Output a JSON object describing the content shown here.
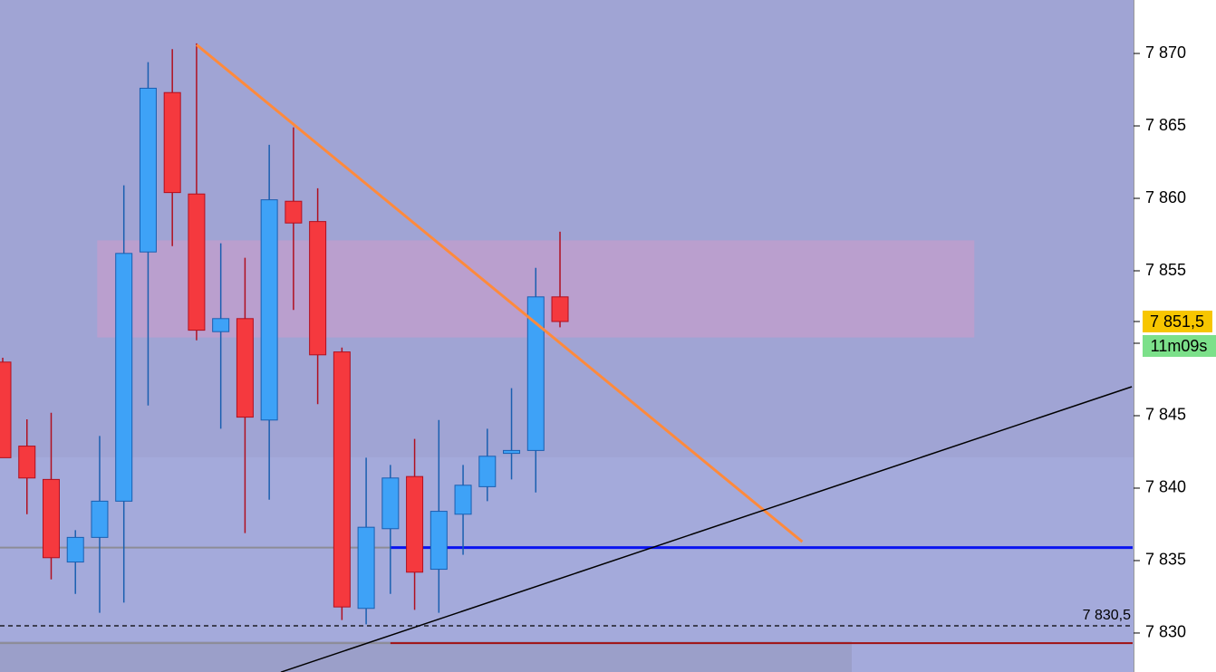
{
  "chart_data": {
    "type": "candlestick",
    "categories": [
      null,
      null,
      null,
      null,
      null,
      null,
      null,
      null,
      null,
      null,
      null,
      null,
      null,
      null,
      null,
      null,
      null,
      null,
      null,
      null,
      null,
      null,
      null,
      null
    ],
    "open": [
      7848.7,
      7842.9,
      7840.6,
      7834.9,
      7836.6,
      7839.1,
      7856.3,
      7867.3,
      7860.3,
      7850.8,
      7851.7,
      7844.7,
      7859.8,
      7858.4,
      7849.4,
      7831.7,
      7837.2,
      7840.8,
      7834.4,
      7838.2,
      7840.1,
      7842.4,
      7842.6,
      7853.2
    ],
    "high": [
      7849.0,
      7844.75,
      7845.2,
      7837.1,
      7843.6,
      7860.9,
      7869.4,
      7870.3,
      7870.7,
      7856.9,
      7855.9,
      7863.7,
      7864.9,
      7860.7,
      7849.7,
      7842.1,
      7841.6,
      7843.4,
      7844.7,
      7841.6,
      7844.1,
      7846.9,
      7855.2,
      7857.7
    ],
    "low": [
      7842.1,
      7838.2,
      7833.7,
      7832.7,
      7831.4,
      7832.1,
      7845.7,
      7856.7,
      7850.2,
      7844.1,
      7836.9,
      7839.2,
      7852.3,
      7845.8,
      7830.9,
      7830.6,
      7832.7,
      7831.6,
      7831.4,
      7835.4,
      7839.1,
      7840.6,
      7839.7,
      7851.1
    ],
    "close": [
      7842.1,
      7840.7,
      7835.2,
      7836.6,
      7839.1,
      7856.2,
      7867.6,
      7860.4,
      7850.9,
      7851.7,
      7844.9,
      7859.9,
      7858.3,
      7849.2,
      7831.8,
      7837.3,
      7840.7,
      7834.2,
      7838.4,
      7840.2,
      7842.2,
      7842.6,
      7853.2,
      7851.5
    ],
    "up_color": "#3ea2f7",
    "down_color": "#f5393e",
    "ylim": [
      7827.31,
      7873.69
    ],
    "yticks": [
      {
        "value": 7830,
        "label": "7 830"
      },
      {
        "value": 7835,
        "label": "7 835"
      },
      {
        "value": 7840,
        "label": "7 840"
      },
      {
        "value": 7845,
        "label": "7 845"
      },
      {
        "value": 7850,
        "label": "7 850"
      },
      {
        "value": 7855,
        "label": "7 855"
      },
      {
        "value": 7860,
        "label": "7 860"
      },
      {
        "value": 7865,
        "label": "7 865"
      },
      {
        "value": 7870,
        "label": "7 870"
      }
    ],
    "zone": {
      "x": [
        3.9,
        40.1
      ],
      "price": [
        7857.1,
        7850.4
      ],
      "color": "#c49ccc"
    },
    "levels": [
      {
        "price": 7835.9,
        "x": [
          -0.2,
          16
        ],
        "color": "#8c8c96"
      },
      {
        "price": 7829.3,
        "x": [
          -0.2,
          16
        ],
        "color": "#8c8c96"
      },
      {
        "price": 7829.3,
        "x": [
          16,
          46.7
        ],
        "color": "#a01010"
      },
      {
        "price": 7835.9,
        "x": [
          16,
          46.7
        ],
        "color": "#0a14f0"
      }
    ],
    "dashed_level": {
      "value": 7830.5,
      "label": "7 830,5"
    },
    "trendlines": [
      {
        "x": [
          8,
          33
        ],
        "price": [
          7870.6,
          7836.3
        ],
        "color": "#ff8a3c"
      },
      {
        "x": [
          11.48,
          46.6
        ],
        "price": [
          7827.3,
          7847.0
        ],
        "color": "#000000"
      }
    ],
    "last_price": {
      "value": 7851.5,
      "label": "7 851,5"
    },
    "timer": "11m09s"
  }
}
